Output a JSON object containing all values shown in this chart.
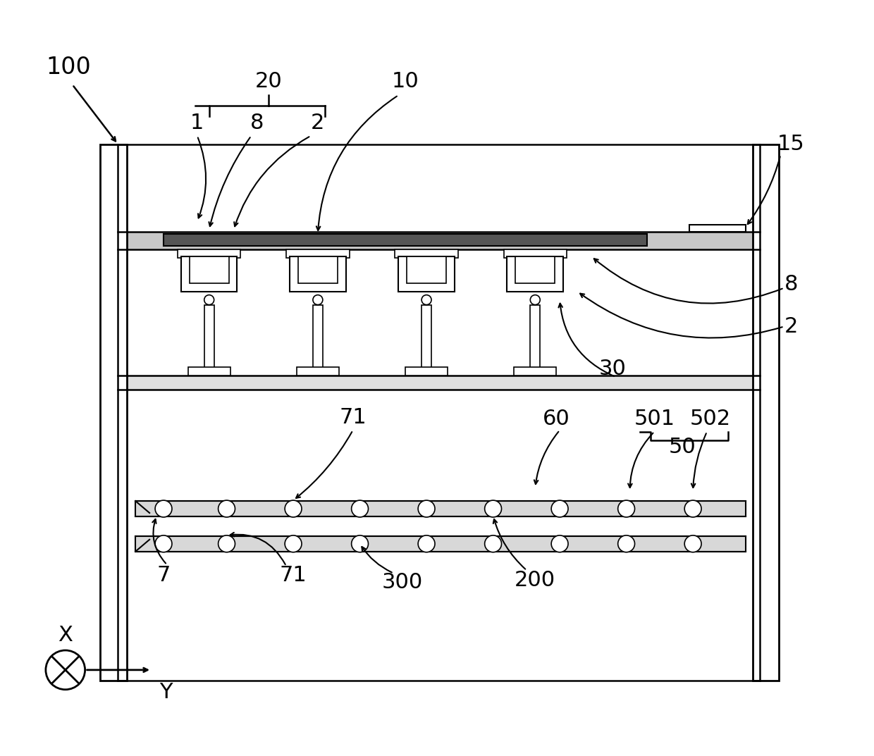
{
  "bg_color": "#ffffff",
  "line_color": "#000000",
  "fig_width": 12.4,
  "fig_height": 10.73,
  "lw": 1.8
}
